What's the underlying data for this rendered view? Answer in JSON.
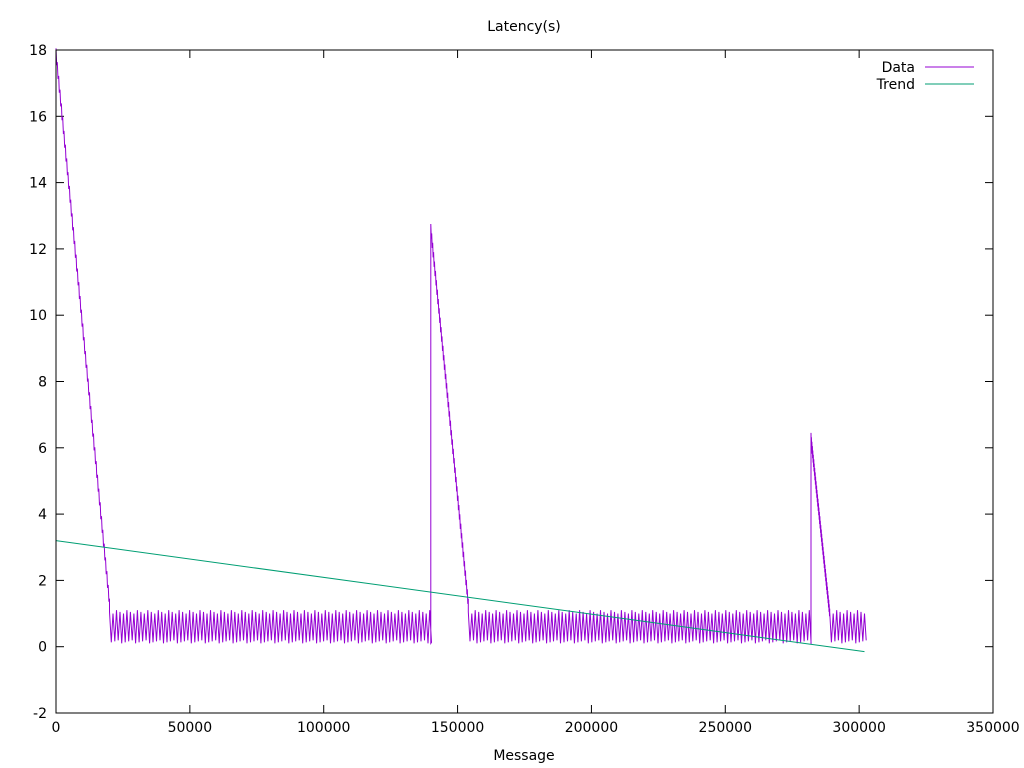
{
  "chart_data": {
    "type": "line",
    "title": "Latency(s)",
    "xlabel": "Message",
    "ylabel": "",
    "xlim": [
      0,
      350000
    ],
    "ylim": [
      -2,
      18
    ],
    "xticks": [
      0,
      50000,
      100000,
      150000,
      200000,
      250000,
      300000,
      350000
    ],
    "yticks": [
      -2,
      0,
      2,
      4,
      6,
      8,
      10,
      12,
      14,
      16,
      18
    ],
    "grid": false,
    "legend": "top-right",
    "series": [
      {
        "name": "Data",
        "color": "#9400d3",
        "segments": [
          {
            "kind": "decay",
            "x": [
              0,
              20000
            ],
            "y": [
              17.9,
              1.3
            ]
          },
          {
            "kind": "oscillation",
            "x": [
              20000,
              140000
            ],
            "low": 0.1,
            "high": 1.1
          },
          {
            "kind": "spike",
            "x": 140000,
            "y": [
              0.1,
              12.6
            ]
          },
          {
            "kind": "decay",
            "x": [
              140000,
              154000
            ],
            "y": [
              12.6,
              1.3
            ]
          },
          {
            "kind": "oscillation",
            "x": [
              154000,
              282000
            ],
            "low": 0.1,
            "high": 1.1
          },
          {
            "kind": "spike",
            "x": 282000,
            "y": [
              0.1,
              6.3
            ]
          },
          {
            "kind": "decay",
            "x": [
              282000,
              289000
            ],
            "y": [
              6.3,
              1.0
            ]
          },
          {
            "kind": "oscillation",
            "x": [
              289000,
              302000
            ],
            "low": 0.1,
            "high": 1.1
          }
        ]
      },
      {
        "name": "Trend",
        "color": "#009e73",
        "x": [
          0,
          302000
        ],
        "y": [
          3.2,
          -0.15
        ]
      }
    ]
  }
}
